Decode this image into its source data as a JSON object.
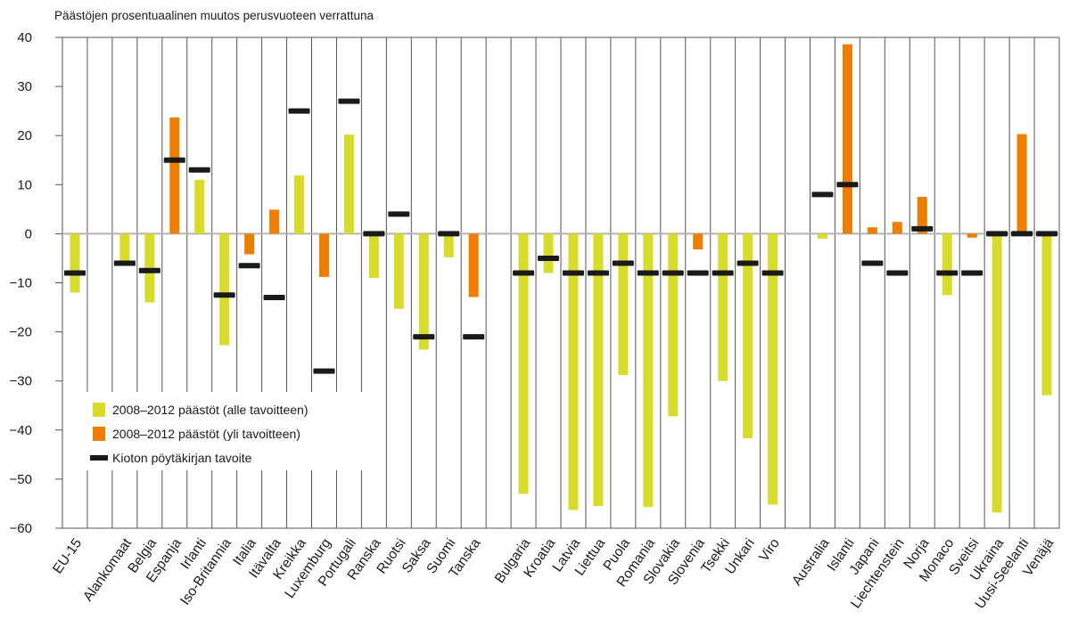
{
  "chart_data": {
    "type": "bar",
    "ylabel": "Päästöjen prosentuaalinen muutos perusvuoteen verrattuna",
    "ylim": [
      -60,
      40
    ],
    "yticks": [
      "40",
      "30",
      "20",
      "10",
      "0",
      "-10",
      "-20",
      "-30",
      "-40",
      "-50",
      "-60"
    ],
    "grid": "vertical category separators and horizontal lines at 40, 0 and -60",
    "colors": {
      "under_target": "#d7dc2a",
      "over_target": "#ef7d00",
      "target": "#1a1a1a",
      "grid": "#555555",
      "zero_line": "#b3b3b3"
    },
    "legend": {
      "placement": "lower-left",
      "entries": [
        {
          "label": "2008–2012 päästöt (alle tavoitteen)",
          "color": "#d7dc2a"
        },
        {
          "label": "2008–2012 päästöt (yli tavoitteen)",
          "color": "#ef7d00"
        },
        {
          "label": "Kioton pöytäkirjan tavoite",
          "color": "#1a1a1a"
        }
      ]
    },
    "categories": [
      {
        "name": "EU-15",
        "value": -12,
        "target": -8,
        "over": false
      },
      {
        "name": "",
        "value": null,
        "target": null,
        "over": false
      },
      {
        "name": "Alankomaat",
        "value": -6,
        "target": -6,
        "over": false
      },
      {
        "name": "Belgia",
        "value": -14,
        "target": -7.5,
        "over": false
      },
      {
        "name": "Espanja",
        "value": 23.7,
        "target": 15,
        "over": true
      },
      {
        "name": "Irlanti",
        "value": 11,
        "target": 13,
        "over": false
      },
      {
        "name": "Iso-Britannia",
        "value": -22.7,
        "target": -12.5,
        "over": false
      },
      {
        "name": "Italia",
        "value": -4.2,
        "target": -6.5,
        "over": true
      },
      {
        "name": "Itävalta",
        "value": 4.9,
        "target": -13,
        "over": true
      },
      {
        "name": "Kreikka",
        "value": 11.9,
        "target": 25,
        "over": false
      },
      {
        "name": "Luxemburg",
        "value": -8.8,
        "target": -28,
        "over": true
      },
      {
        "name": "Portugali",
        "value": 20.2,
        "target": 27,
        "over": false
      },
      {
        "name": "Ranska",
        "value": -9,
        "target": 0,
        "over": false
      },
      {
        "name": "Ruotsi",
        "value": -15.3,
        "target": 4,
        "over": false
      },
      {
        "name": "Saksa",
        "value": -23.6,
        "target": -21,
        "over": false
      },
      {
        "name": "Suomi",
        "value": -4.8,
        "target": 0,
        "over": false
      },
      {
        "name": "Tanska",
        "value": -12.9,
        "target": -21,
        "over": true
      },
      {
        "name": "",
        "value": null,
        "target": null,
        "over": false
      },
      {
        "name": "Bulgaria",
        "value": -53,
        "target": -8,
        "over": false
      },
      {
        "name": "Kroatia",
        "value": -8,
        "target": -5,
        "over": false
      },
      {
        "name": "Latvia",
        "value": -56.3,
        "target": -8,
        "over": false
      },
      {
        "name": "Liettua",
        "value": -55.5,
        "target": -8,
        "over": false
      },
      {
        "name": "Puola",
        "value": -28.8,
        "target": -6,
        "over": false
      },
      {
        "name": "Romania",
        "value": -55.7,
        "target": -8,
        "over": false
      },
      {
        "name": "Slovakia",
        "value": -37.2,
        "target": -8,
        "over": false
      },
      {
        "name": "Slovenia",
        "value": -3.2,
        "target": -8,
        "over": true
      },
      {
        "name": "Tsekki",
        "value": -30,
        "target": -8,
        "over": false
      },
      {
        "name": "Unkari",
        "value": -41.7,
        "target": -6,
        "over": false
      },
      {
        "name": "Viro",
        "value": -55.2,
        "target": -8,
        "over": false
      },
      {
        "name": "",
        "value": null,
        "target": null,
        "over": false
      },
      {
        "name": "Australia",
        "value": -1,
        "target": 8,
        "over": false
      },
      {
        "name": "Islanti",
        "value": 38.6,
        "target": 10,
        "over": true
      },
      {
        "name": "Japani",
        "value": 1.3,
        "target": -6,
        "over": true
      },
      {
        "name": "Liechtenstein",
        "value": 2.4,
        "target": -8,
        "over": true
      },
      {
        "name": "Norja",
        "value": 7.5,
        "target": 1,
        "over": true
      },
      {
        "name": "Monaco",
        "value": -12.5,
        "target": -8,
        "over": false
      },
      {
        "name": "Sveitsi",
        "value": -0.8,
        "target": -8,
        "over": true
      },
      {
        "name": "Ukraina",
        "value": -56.8,
        "target": 0,
        "over": false
      },
      {
        "name": "Uusi-Seelanti",
        "value": 20.3,
        "target": 0,
        "over": true
      },
      {
        "name": "Venäjä",
        "value": -32.9,
        "target": 0,
        "over": false
      }
    ]
  }
}
